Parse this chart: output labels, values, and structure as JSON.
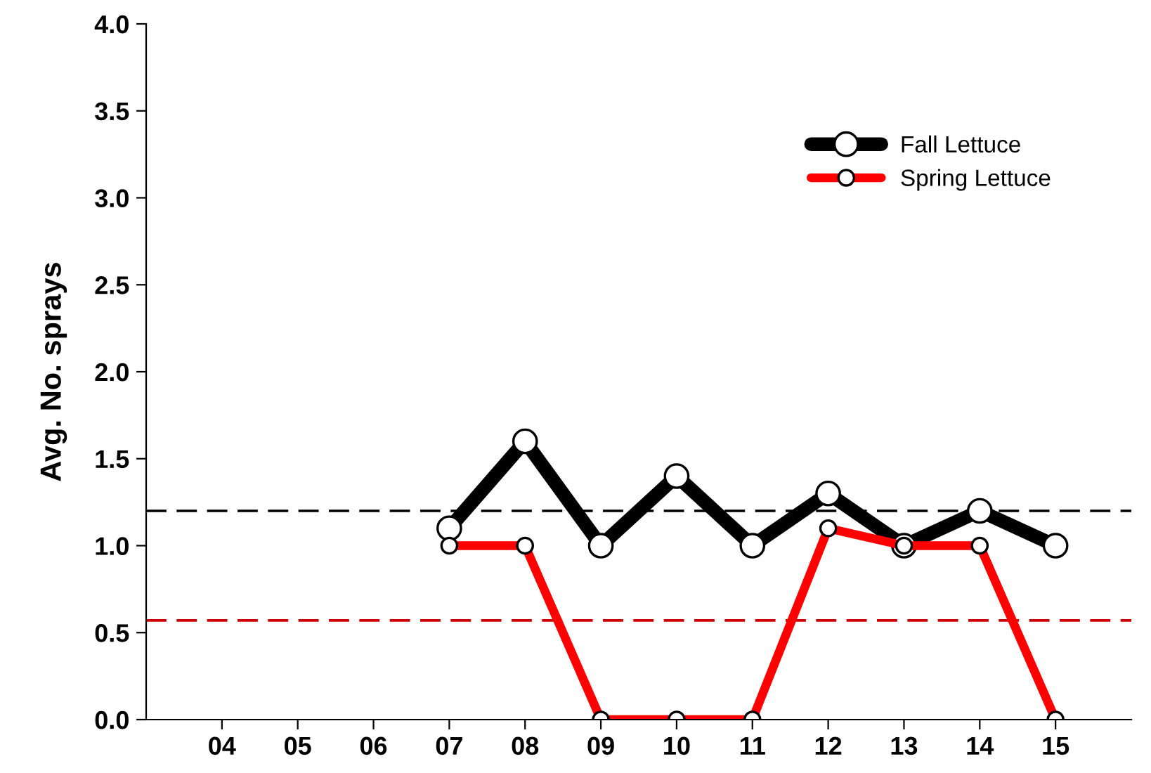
{
  "chart_data": {
    "type": "line",
    "ylabel": "Avg. No. sprays",
    "xlim": [
      3,
      16
    ],
    "ylim": [
      0,
      4.0
    ],
    "xticks": [
      {
        "value": 4,
        "label": "04"
      },
      {
        "value": 5,
        "label": "05"
      },
      {
        "value": 6,
        "label": "06"
      },
      {
        "value": 7,
        "label": "07"
      },
      {
        "value": 8,
        "label": "08"
      },
      {
        "value": 9,
        "label": "09"
      },
      {
        "value": 10,
        "label": "10"
      },
      {
        "value": 11,
        "label": "11"
      },
      {
        "value": 12,
        "label": "12"
      },
      {
        "value": 13,
        "label": "13"
      },
      {
        "value": 14,
        "label": "14"
      },
      {
        "value": 15,
        "label": "15"
      }
    ],
    "yticks": [
      {
        "value": 0,
        "label": "0.0"
      },
      {
        "value": 0.5,
        "label": "0.5"
      },
      {
        "value": 1,
        "label": "1.0"
      },
      {
        "value": 1.5,
        "label": "1.5"
      },
      {
        "value": 2,
        "label": "2.0"
      },
      {
        "value": 2.5,
        "label": "2.5"
      },
      {
        "value": 3,
        "label": "3.0"
      },
      {
        "value": 3.5,
        "label": "3.5"
      },
      {
        "value": 4,
        "label": "4.0"
      }
    ],
    "x": [
      7,
      8,
      9,
      10,
      11,
      12,
      13,
      14,
      15
    ],
    "series": [
      {
        "name": "Fall Lettuce",
        "color": "#000000",
        "values": [
          1.1,
          1.6,
          1.0,
          1.4,
          1.0,
          1.3,
          1.0,
          1.2,
          1.0
        ]
      },
      {
        "name": "Spring Lettuce",
        "color": "#ff0000",
        "values": [
          1.0,
          1.0,
          0,
          0,
          0,
          1.1,
          1.0,
          1.0,
          0
        ]
      }
    ],
    "ref_lines": [
      {
        "axis": "y",
        "value": 1.2,
        "color": "#000000",
        "line_style": "dashed"
      },
      {
        "axis": "y",
        "value": 0.57,
        "color": "#cc0000",
        "line_style": "dashed"
      }
    ],
    "marker": "circle",
    "line_style": "solid",
    "grid": false,
    "legend": "top right"
  }
}
